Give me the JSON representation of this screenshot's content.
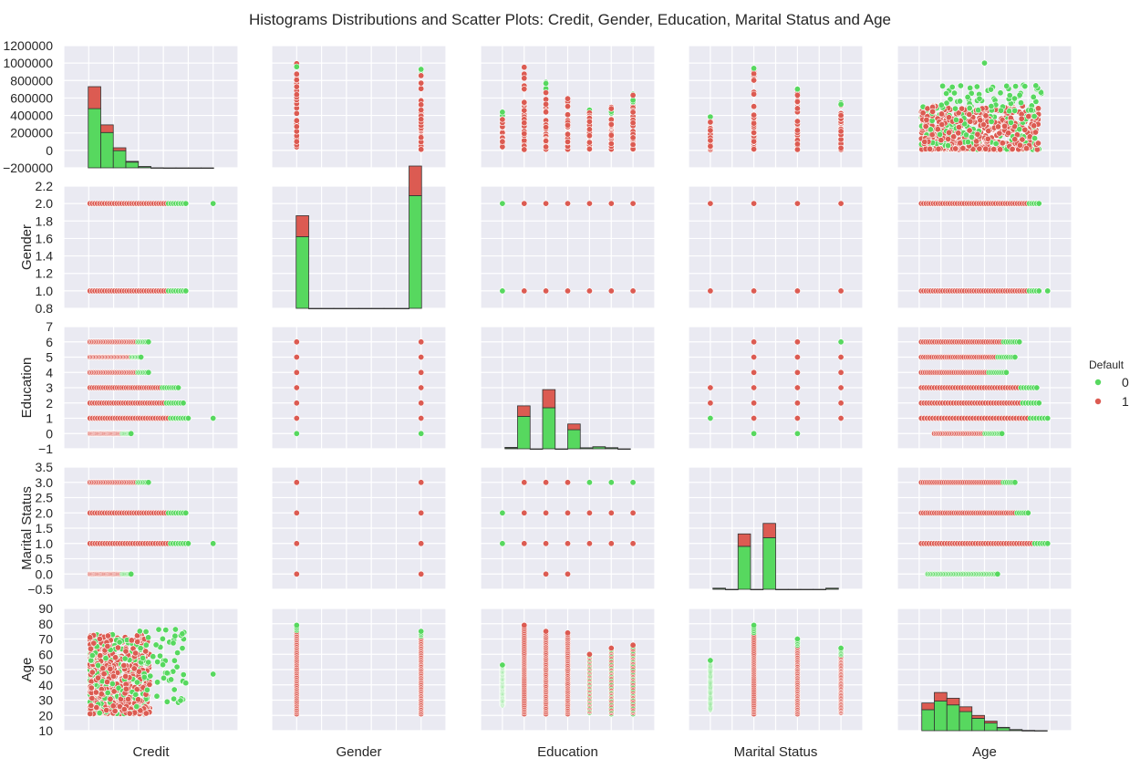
{
  "title": "Histograms Distributions and Scatter Plots: Credit, Gender, Education, Marital Status and Age",
  "legend": {
    "title": "Default",
    "entries": [
      {
        "label": "0",
        "color": "#57d85f"
      },
      {
        "label": "1",
        "color": "#dc5b52"
      }
    ]
  },
  "chart_data": {
    "type": "scatter",
    "variables": [
      "Credit",
      "Gender",
      "Education",
      "Marital Status",
      "Age"
    ],
    "hue": "Default",
    "colors": {
      "0": "#57d85f",
      "1": "#dc5b52"
    },
    "axes": {
      "Credit": {
        "lim": [
          -200000,
          1200000
        ],
        "ticks": [
          "1200000",
          "1000000",
          "800000",
          "600000",
          "400000",
          "200000",
          "0",
          "−200000"
        ]
      },
      "Gender": {
        "lim": [
          0.8,
          2.2
        ],
        "ticks": [
          "2.2",
          "2.0",
          "1.8",
          "1.6",
          "1.4",
          "1.2",
          "1.0",
          "0.8"
        ]
      },
      "Education": {
        "lim": [
          -1,
          7
        ],
        "ticks": [
          "7",
          "6",
          "5",
          "4",
          "3",
          "2",
          "1",
          "0",
          "−1"
        ]
      },
      "Marital Status": {
        "lim": [
          -0.5,
          3.5
        ],
        "ticks": [
          "3.5",
          "3.0",
          "2.5",
          "2.0",
          "1.5",
          "1.0",
          "0.5",
          "0.0",
          "−0.5"
        ]
      },
      "Age": {
        "lim": [
          10,
          90
        ],
        "ticks": [
          "90",
          "80",
          "70",
          "60",
          "50",
          "40",
          "30",
          "20",
          "10"
        ]
      }
    },
    "histograms": {
      "Credit": {
        "bins": 10,
        "default0": [
          0.62,
          0.37,
          0.18,
          0.06,
          0.012,
          0.001,
          0,
          0,
          0,
          0
        ],
        "default1": [
          0.23,
          0.08,
          0.03,
          0.008,
          0.002,
          0,
          0,
          0,
          0,
          0
        ]
      },
      "Gender": {
        "bins": 10,
        "default0": [
          0.75,
          0,
          0,
          0,
          0,
          0,
          0,
          0,
          0,
          1.18
        ],
        "default1": [
          0.22,
          0,
          0,
          0,
          0,
          0,
          0,
          0,
          0,
          0.31
        ]
      },
      "Education": {
        "bins": 10,
        "default0": [
          0.01,
          0.34,
          0,
          0.43,
          0,
          0.2,
          0.01,
          0.02,
          0.01,
          0
        ],
        "default1": [
          0.005,
          0.11,
          0,
          0.19,
          0,
          0.06,
          0.001,
          0.002,
          0.002,
          0
        ]
      },
      "Marital Status": {
        "bins": 10,
        "default0": [
          0.01,
          0,
          0.45,
          0,
          0.54,
          0,
          0,
          0,
          0,
          0.01
        ],
        "default1": [
          0.002,
          0,
          0.13,
          0,
          0.15,
          0,
          0,
          0,
          0,
          0.002
        ]
      },
      "Age": {
        "bins": 10,
        "default0": [
          0.22,
          0.31,
          0.27,
          0.2,
          0.13,
          0.08,
          0.03,
          0.01,
          0.002,
          0.001
        ],
        "default1": [
          0.07,
          0.09,
          0.07,
          0.05,
          0.03,
          0.02,
          0.005,
          0.002,
          0.001,
          0
        ]
      }
    },
    "scatter": {
      "Gender_values": [
        1,
        2
      ],
      "Education_values": [
        0,
        1,
        2,
        3,
        4,
        5,
        6
      ],
      "Marital_values": [
        0,
        1,
        2,
        3
      ],
      "Credit_by_level": {
        "Gender": {
          "1": [
            10000,
            760000,
            800000
          ],
          "2": [
            10000,
            780000,
            1000000
          ]
        },
        "Education": {
          "0": [
            10000,
            340000,
            360000
          ],
          "1": [
            10000,
            780000,
            1000000
          ],
          "2": [
            10000,
            760000,
            800000
          ],
          "3": [
            10000,
            740000,
            760000
          ],
          "4": [
            10000,
            500000,
            700000
          ],
          "5": [
            10000,
            560000,
            560000
          ],
          "6": [
            10000,
            500000,
            550000
          ]
        },
        "Marital": {
          "0": [
            10000,
            320000,
            360000
          ],
          "1": [
            10000,
            800000,
            1000000
          ],
          "2": [
            10000,
            780000,
            800000
          ],
          "3": [
            10000,
            500000,
            500000
          ]
        }
      },
      "Age_by_level": {
        "Gender": {
          "1": [
            21,
            79
          ],
          "2": [
            21,
            75
          ]
        },
        "Education": {
          "0": [
            27,
            53
          ],
          "1": [
            21,
            79
          ],
          "2": [
            21,
            75
          ],
          "3": [
            21,
            74
          ],
          "4": [
            22,
            60
          ],
          "5": [
            21,
            64
          ],
          "6": [
            21,
            66
          ]
        },
        "Marital": {
          "0": [
            24,
            56
          ],
          "1": [
            21,
            79
          ],
          "2": [
            21,
            70
          ],
          "3": [
            22,
            64
          ]
        }
      },
      "Credit_range_by_Education": {
        "0": [
          40000,
          440000
        ],
        "1": [
          10000,
          1000000
        ],
        "2": [
          10000,
          800000
        ],
        "3": [
          10000,
          600000
        ],
        "4": [
          10000,
          500000
        ],
        "5": [
          10000,
          500000
        ],
        "6": [
          10000,
          650000
        ]
      },
      "Credit_range_by_Marital": {
        "0": [
          10000,
          440000
        ],
        "1": [
          10000,
          1000000
        ],
        "2": [
          10000,
          750000
        ],
        "3": [
          10000,
          580000
        ]
      },
      "Credit_range_by_Gender": {
        "1": [
          10000,
          1000000
        ],
        "2": [
          10000,
          1000000
        ]
      },
      "Age_range_by_Gender": {
        "1": [
          21,
          79
        ],
        "2": [
          21,
          75
        ]
      }
    }
  }
}
